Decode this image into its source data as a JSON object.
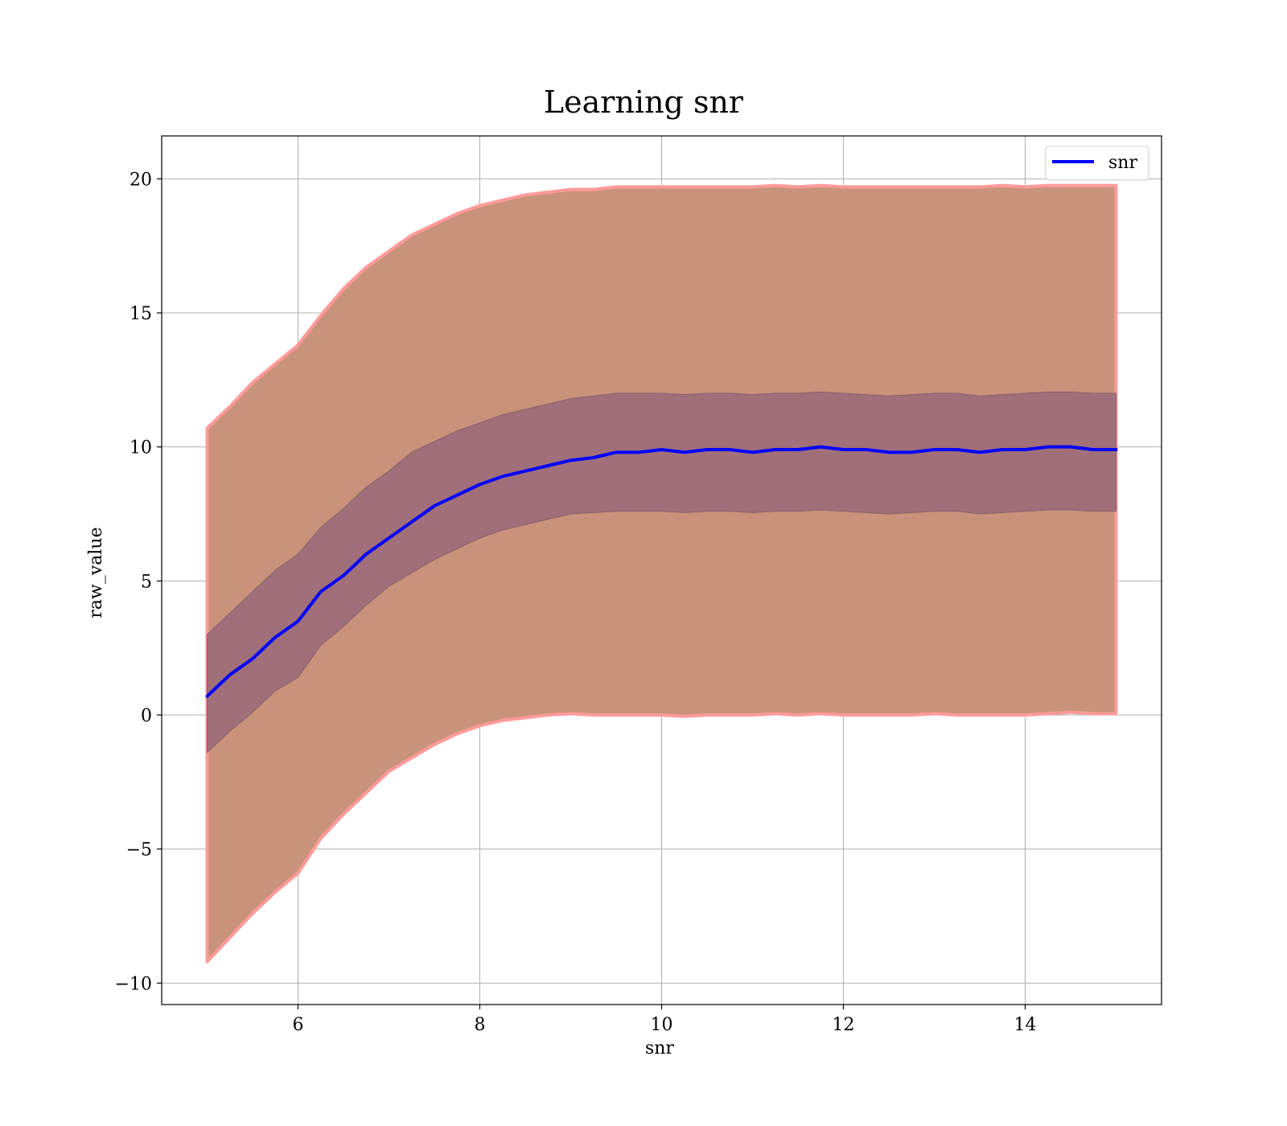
{
  "chart_data": {
    "type": "line",
    "title": "Learning snr",
    "xlabel": "snr",
    "ylabel": "raw_value",
    "xlim": [
      4.5,
      15.5
    ],
    "ylim": [
      -10.8,
      21.6
    ],
    "xticks": [
      6,
      8,
      10,
      12,
      14
    ],
    "yticks": [
      -10,
      -5,
      0,
      5,
      10,
      15,
      20
    ],
    "xtick_labels": [
      "6",
      "8",
      "10",
      "12",
      "14"
    ],
    "ytick_labels": [
      "−10",
      "−5",
      "0",
      "5",
      "10",
      "15",
      "20"
    ],
    "grid": true,
    "legend": {
      "position": "top-right",
      "entries": [
        "snr"
      ]
    },
    "colors": {
      "line": "#0000ff",
      "outer_band": "#c8937a",
      "outer_band_edge": "#ff9a9a",
      "inner_band": "#a06f7a",
      "grid": "#b0b0b0"
    },
    "x": [
      5.0,
      5.25,
      5.5,
      5.75,
      6.0,
      6.25,
      6.5,
      6.75,
      7.0,
      7.25,
      7.5,
      7.75,
      8.0,
      8.25,
      8.5,
      8.75,
      9.0,
      9.25,
      9.5,
      9.75,
      10.0,
      10.25,
      10.5,
      10.75,
      11.0,
      11.25,
      11.5,
      11.75,
      12.0,
      12.25,
      12.5,
      12.75,
      13.0,
      13.25,
      13.5,
      13.75,
      14.0,
      14.25,
      14.5,
      14.75,
      15.0
    ],
    "series": [
      {
        "name": "snr",
        "values": [
          0.7,
          1.5,
          2.1,
          2.9,
          3.5,
          4.6,
          5.2,
          6.0,
          6.6,
          7.2,
          7.8,
          8.2,
          8.6,
          8.9,
          9.1,
          9.3,
          9.5,
          9.6,
          9.8,
          9.8,
          9.9,
          9.8,
          9.9,
          9.9,
          9.8,
          9.9,
          9.9,
          10.0,
          9.9,
          9.9,
          9.8,
          9.8,
          9.9,
          9.9,
          9.8,
          9.9,
          9.9,
          10.0,
          10.0,
          9.9,
          9.9
        ]
      }
    ],
    "bands": [
      {
        "kind": "outer",
        "lower": [
          -9.2,
          -8.3,
          -7.4,
          -6.6,
          -5.9,
          -4.6,
          -3.7,
          -2.9,
          -2.1,
          -1.6,
          -1.1,
          -0.7,
          -0.4,
          -0.2,
          -0.1,
          0.0,
          0.05,
          0.0,
          0.0,
          0.0,
          0.0,
          -0.05,
          0.0,
          0.0,
          0.0,
          0.05,
          0.0,
          0.05,
          0.0,
          0.0,
          0.0,
          0.0,
          0.05,
          0.0,
          0.0,
          0.0,
          0.0,
          0.05,
          0.1,
          0.05,
          0.05
        ],
        "upper": [
          10.7,
          11.5,
          12.4,
          13.1,
          13.8,
          14.9,
          15.9,
          16.7,
          17.3,
          17.9,
          18.3,
          18.7,
          19.0,
          19.2,
          19.4,
          19.5,
          19.6,
          19.6,
          19.7,
          19.7,
          19.7,
          19.7,
          19.7,
          19.7,
          19.7,
          19.75,
          19.7,
          19.75,
          19.7,
          19.7,
          19.7,
          19.7,
          19.7,
          19.7,
          19.7,
          19.75,
          19.7,
          19.75,
          19.75,
          19.75,
          19.75
        ]
      },
      {
        "kind": "inner",
        "lower": [
          -1.4,
          -0.6,
          0.1,
          0.9,
          1.4,
          2.6,
          3.3,
          4.1,
          4.8,
          5.3,
          5.8,
          6.2,
          6.6,
          6.9,
          7.1,
          7.3,
          7.5,
          7.55,
          7.6,
          7.6,
          7.6,
          7.55,
          7.6,
          7.6,
          7.55,
          7.6,
          7.6,
          7.65,
          7.6,
          7.55,
          7.5,
          7.55,
          7.6,
          7.6,
          7.5,
          7.55,
          7.6,
          7.65,
          7.65,
          7.6,
          7.6
        ],
        "upper": [
          3.0,
          3.8,
          4.6,
          5.4,
          6.0,
          7.0,
          7.7,
          8.5,
          9.1,
          9.8,
          10.2,
          10.6,
          10.9,
          11.2,
          11.4,
          11.6,
          11.8,
          11.9,
          12.0,
          12.0,
          12.0,
          11.95,
          12.0,
          12.0,
          11.95,
          12.0,
          12.0,
          12.05,
          12.0,
          11.95,
          11.9,
          11.95,
          12.0,
          12.0,
          11.9,
          11.95,
          12.0,
          12.05,
          12.05,
          12.0,
          12.0
        ]
      }
    ]
  }
}
